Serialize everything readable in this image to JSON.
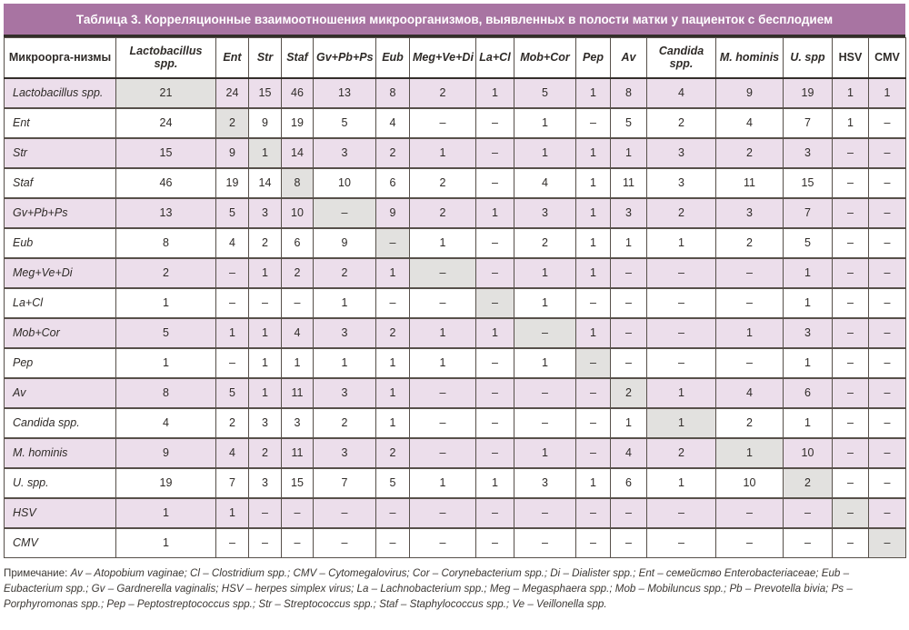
{
  "title": "Таблица 3. Корреляционные взаимоотношения микроорганизмов, выявленных в полости матки у пациенток с бесплодием",
  "colors": {
    "title_bar": "#a874a2",
    "stripe_pink": "#ecdeeb",
    "diagonal_grey": "#e2e1df",
    "grid_border": "#57504a"
  },
  "chart_data": {
    "type": "table",
    "title": "Таблица 3. Корреляционные взаимоотношения микроорганизмов, выявленных в полости матки у пациенток с бесплодием",
    "columns": [
      "Микроорга-низмы",
      "Lactobacillus spp.",
      "Ent",
      "Str",
      "Staf",
      "Gv+Pb+Ps",
      "Eub",
      "Meg+Ve+Di",
      "La+Cl",
      "Mob+Cor",
      "Pep",
      "Av",
      "Candida spp.",
      "M. hominis",
      "U. spp",
      "HSV",
      "CMV"
    ],
    "non_italic_headers": [
      "Микроорга-низмы",
      "HSV",
      "CMV"
    ],
    "highlight_diagonal": true,
    "rows": [
      {
        "label": "Lactobacillus spp.",
        "values": [
          "21",
          "24",
          "15",
          "46",
          "13",
          "8",
          "2",
          "1",
          "5",
          "1",
          "8",
          "4",
          "9",
          "19",
          "1",
          "1"
        ]
      },
      {
        "label": "Ent",
        "values": [
          "24",
          "2",
          "9",
          "19",
          "5",
          "4",
          "–",
          "–",
          "1",
          "–",
          "5",
          "2",
          "4",
          "7",
          "1",
          "–"
        ]
      },
      {
        "label": "Str",
        "values": [
          "15",
          "9",
          "1",
          "14",
          "3",
          "2",
          "1",
          "–",
          "1",
          "1",
          "1",
          "3",
          "2",
          "3",
          "–",
          "–"
        ]
      },
      {
        "label": "Staf",
        "values": [
          "46",
          "19",
          "14",
          "8",
          "10",
          "6",
          "2",
          "–",
          "4",
          "1",
          "11",
          "3",
          "11",
          "15",
          "–",
          "–"
        ]
      },
      {
        "label": "Gv+Pb+Ps",
        "values": [
          "13",
          "5",
          "3",
          "10",
          "–",
          "9",
          "2",
          "1",
          "3",
          "1",
          "3",
          "2",
          "3",
          "7",
          "–",
          "–"
        ]
      },
      {
        "label": "Eub",
        "values": [
          "8",
          "4",
          "2",
          "6",
          "9",
          "–",
          "1",
          "–",
          "2",
          "1",
          "1",
          "1",
          "2",
          "5",
          "–",
          "–"
        ]
      },
      {
        "label": "Meg+Ve+Di",
        "values": [
          "2",
          "–",
          "1",
          "2",
          "2",
          "1",
          "–",
          "–",
          "1",
          "1",
          "–",
          "–",
          "–",
          "1",
          "–",
          "–"
        ]
      },
      {
        "label": "La+Cl",
        "values": [
          "1",
          "–",
          "–",
          "–",
          "1",
          "–",
          "–",
          "–",
          "1",
          "–",
          "–",
          "–",
          "–",
          "1",
          "–",
          "–"
        ]
      },
      {
        "label": "Mob+Cor",
        "values": [
          "5",
          "1",
          "1",
          "4",
          "3",
          "2",
          "1",
          "1",
          "–",
          "1",
          "–",
          "–",
          "1",
          "3",
          "–",
          "–"
        ]
      },
      {
        "label": "Pep",
        "values": [
          "1",
          "–",
          "1",
          "1",
          "1",
          "1",
          "1",
          "–",
          "1",
          "–",
          "–",
          "–",
          "–",
          "1",
          "–",
          "–"
        ]
      },
      {
        "label": "Av",
        "values": [
          "8",
          "5",
          "1",
          "11",
          "3",
          "1",
          "–",
          "–",
          "–",
          "–",
          "2",
          "1",
          "4",
          "6",
          "–",
          "–"
        ]
      },
      {
        "label": "Candida spp.",
        "values": [
          "4",
          "2",
          "3",
          "3",
          "2",
          "1",
          "–",
          "–",
          "–",
          "–",
          "1",
          "1",
          "2",
          "1",
          "–",
          "–"
        ]
      },
      {
        "label": "M. hominis",
        "values": [
          "9",
          "4",
          "2",
          "11",
          "3",
          "2",
          "–",
          "–",
          "1",
          "–",
          "4",
          "2",
          "1",
          "10",
          "–",
          "–"
        ]
      },
      {
        "label": "U. spp.",
        "values": [
          "19",
          "7",
          "3",
          "15",
          "7",
          "5",
          "1",
          "1",
          "3",
          "1",
          "6",
          "1",
          "10",
          "2",
          "–",
          "–"
        ]
      },
      {
        "label": "HSV",
        "values": [
          "1",
          "1",
          "–",
          "–",
          "–",
          "–",
          "–",
          "–",
          "–",
          "–",
          "–",
          "–",
          "–",
          "–",
          "–",
          "–"
        ]
      },
      {
        "label": "CMV",
        "values": [
          "1",
          "–",
          "–",
          "–",
          "–",
          "–",
          "–",
          "–",
          "–",
          "–",
          "–",
          "–",
          "–",
          "–",
          "–",
          "–"
        ]
      }
    ]
  },
  "footnote": {
    "prefix": "Примечание: ",
    "text": "Av – Atopobium vaginae; Cl – Clostridium spp.; CMV – Cytomegalovirus; Cor – Corynebacterium spp.; Di – Dialister spp.; Ent – семейство Enterobacteriaceae; Eub – Eubacterium spp.; Gv – Gardnerella vaginalis; HSV – herpes simplex virus; La – Lachnobacterium spp.; Meg – Megasphaera spp.; Mob – Mobiluncus spp.; Pb – Prevotella bivia; Ps – Porphyromonas spp.; Pep – Peptostreptococcus spp.; Str – Streptococcus spp.; Staf – Staphylococcus spp.; Ve – Veillonella spp."
  }
}
